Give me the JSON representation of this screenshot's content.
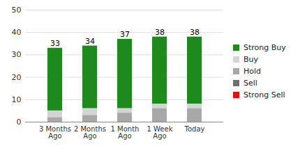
{
  "chart_data": {
    "type": "bar",
    "stacked": true,
    "categories": [
      "3 Months Ago",
      "2 Months Ago",
      "1 Month Ago",
      "1 Week Ago",
      "Today"
    ],
    "series": [
      {
        "name": "Strong Buy",
        "color": "#1e8a1e",
        "values": [
          28,
          28,
          31,
          30,
          30
        ]
      },
      {
        "name": "Buy",
        "color": "#d4d4d4",
        "values": [
          3,
          3,
          2,
          2,
          2
        ]
      },
      {
        "name": "Hold",
        "color": "#a8a8a8",
        "values": [
          2,
          3,
          4,
          6,
          6
        ]
      },
      {
        "name": "Sell",
        "color": "#707070",
        "values": [
          0,
          0,
          0,
          0,
          0
        ]
      },
      {
        "name": "Strong Sell",
        "color": "#dd1111",
        "values": [
          0,
          0,
          0,
          0,
          0
        ]
      }
    ],
    "totals": [
      33,
      34,
      37,
      38,
      38
    ],
    "ylim": [
      0,
      50
    ],
    "yticks": [
      0,
      10,
      20,
      30,
      40,
      50
    ],
    "grid": true,
    "legend": "right"
  }
}
